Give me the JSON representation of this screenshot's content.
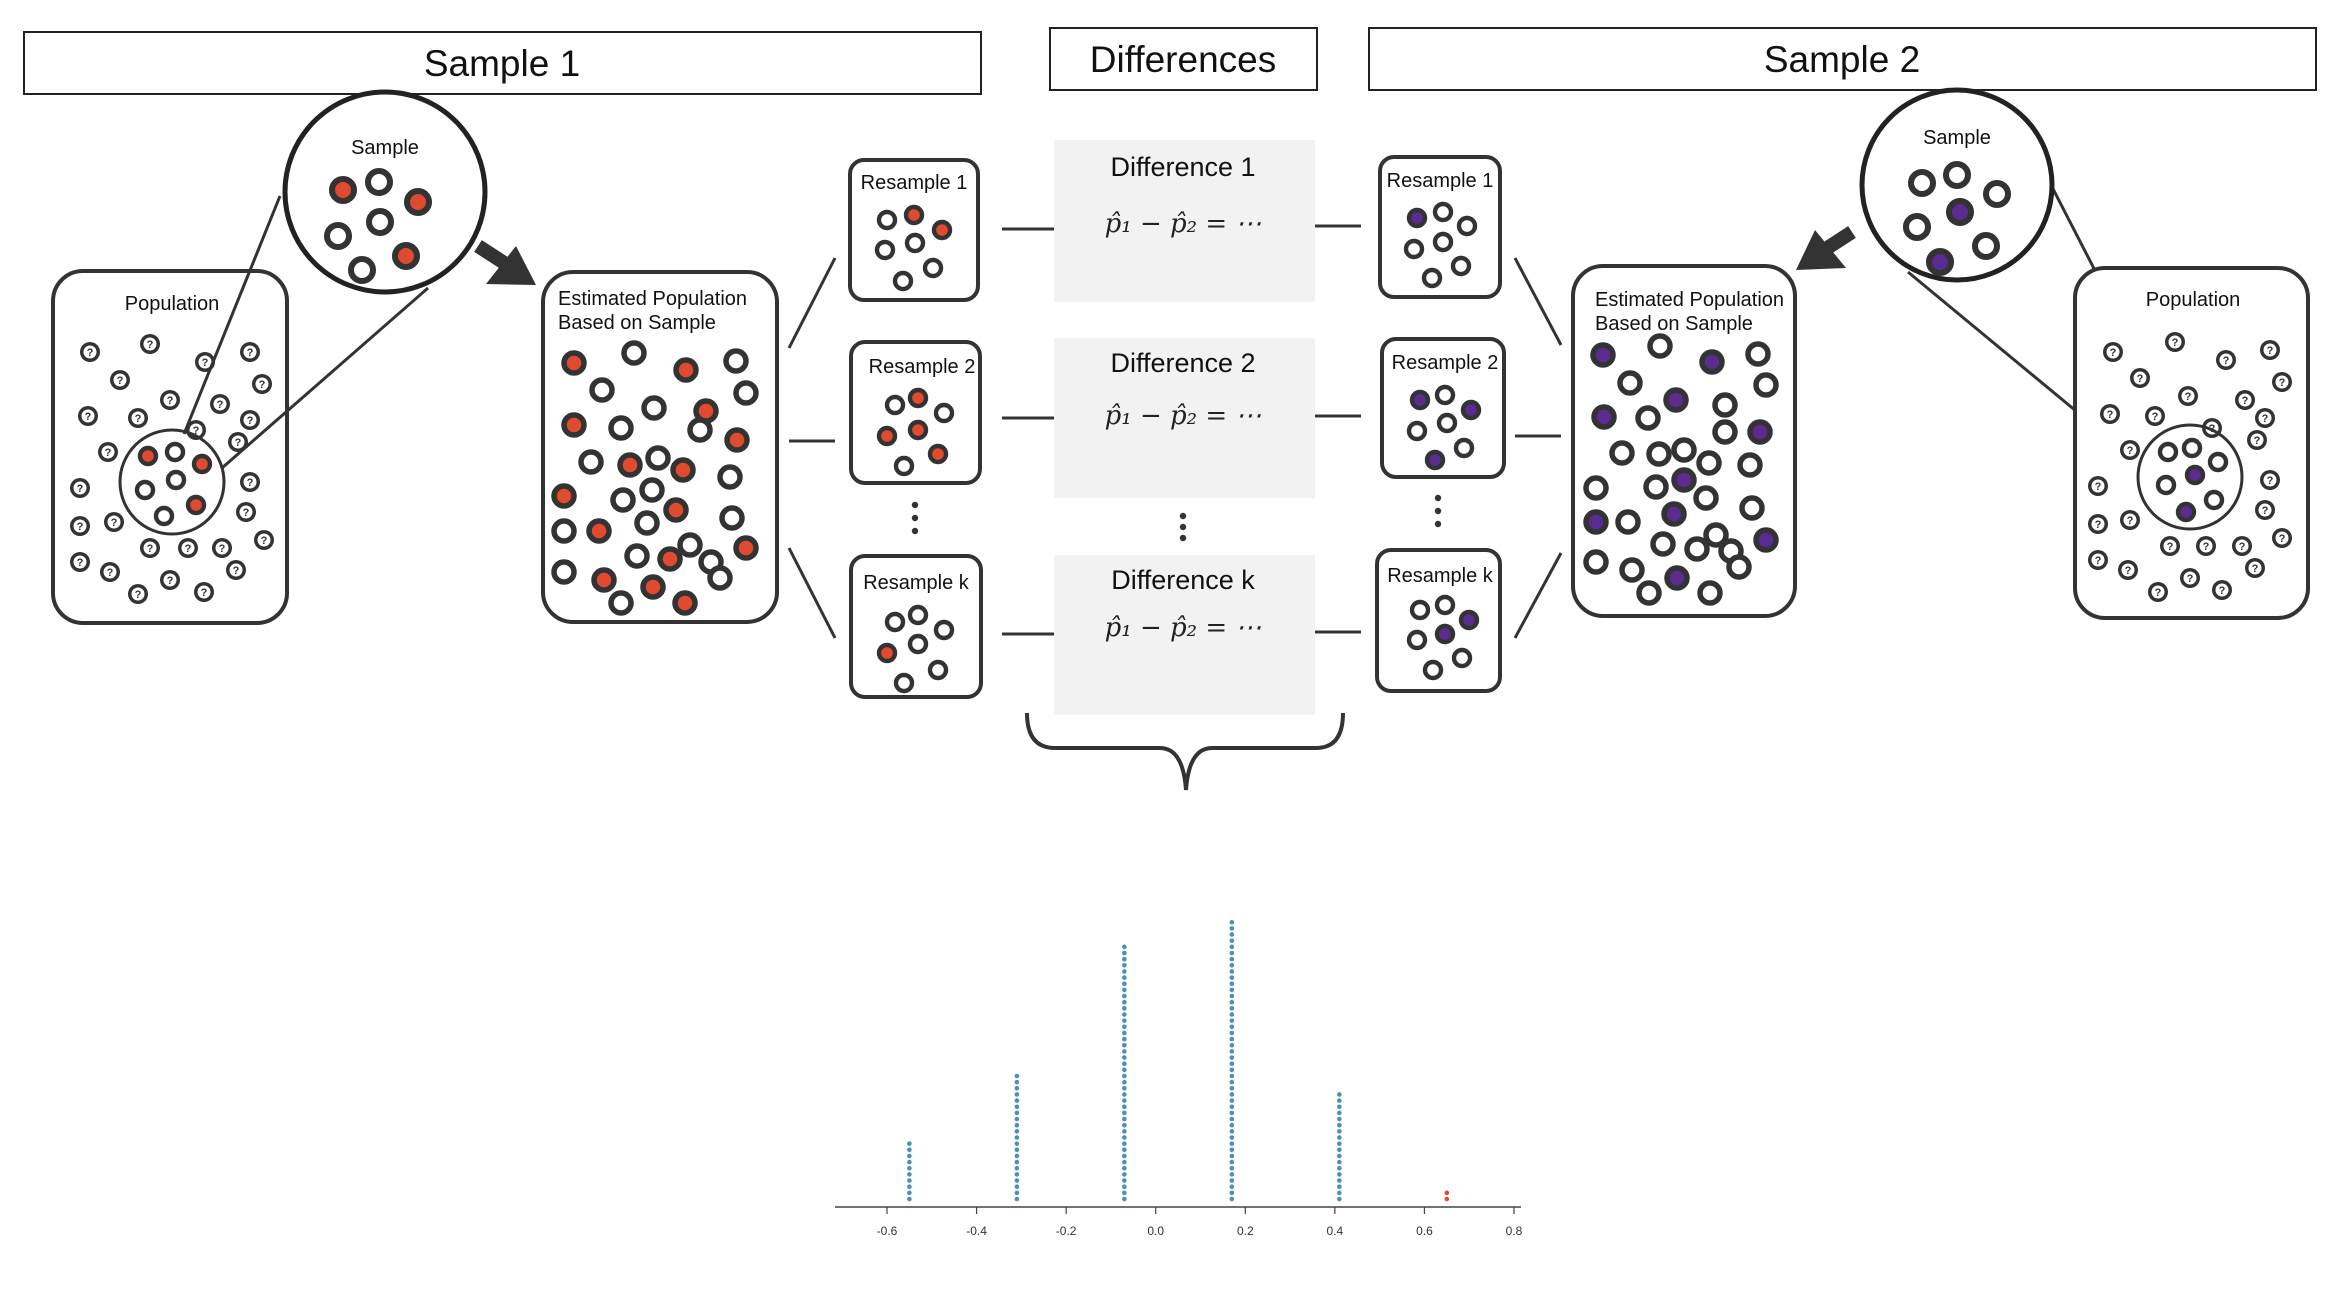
{
  "headers": {
    "sample1": "Sample 1",
    "differences": "Differences",
    "sample2": "Sample 2"
  },
  "left": {
    "population_label": "Population",
    "sample_label": "Sample",
    "estimated_label_line1": "Estimated Population",
    "estimated_label_line2": "Based on Sample",
    "resamples": [
      "Resample 1",
      "Resample 2",
      "Resample k"
    ]
  },
  "right": {
    "population_label": "Population",
    "sample_label": "Sample",
    "estimated_label_line1": "Estimated Population",
    "estimated_label_line2": "Based on Sample",
    "resamples": [
      "Resample 1",
      "Resample 2",
      "Resample k"
    ]
  },
  "differences": [
    {
      "title": "Difference 1",
      "formula": "p̂₁ − p̂₂ = ⋯"
    },
    {
      "title": "Difference 2",
      "formula": "p̂₁ − p̂₂ = ⋯"
    },
    {
      "title": "Difference k",
      "formula": "p̂₁ − p̂₂ = ⋯"
    }
  ],
  "population_marker": "?",
  "colors": {
    "sample1_accent": "#e04a2f",
    "sample2_accent": "#5b2c8f",
    "outline": "#333333",
    "diff_panel": "#f2f2f2",
    "dot_blue": "#4a90b8",
    "dot_red": "#e04a2f"
  },
  "chart_data": {
    "type": "dot",
    "x_ticks": [
      "-0.6",
      "-0.4",
      "-0.2",
      "0.0",
      "0.2",
      "0.4",
      "0.6",
      "0.8"
    ],
    "xlim": [
      -0.6,
      0.8
    ],
    "stacks": [
      {
        "x": -0.55,
        "count": 10,
        "color": "#4a90b8"
      },
      {
        "x": -0.31,
        "count": 21,
        "color": "#4a90b8"
      },
      {
        "x": -0.07,
        "count": 42,
        "color": "#4a90b8"
      },
      {
        "x": 0.17,
        "count": 46,
        "color": "#4a90b8"
      },
      {
        "x": 0.41,
        "count": 18,
        "color": "#4a90b8"
      },
      {
        "x": 0.65,
        "count": 2,
        "color": "#e04a2f"
      }
    ]
  }
}
